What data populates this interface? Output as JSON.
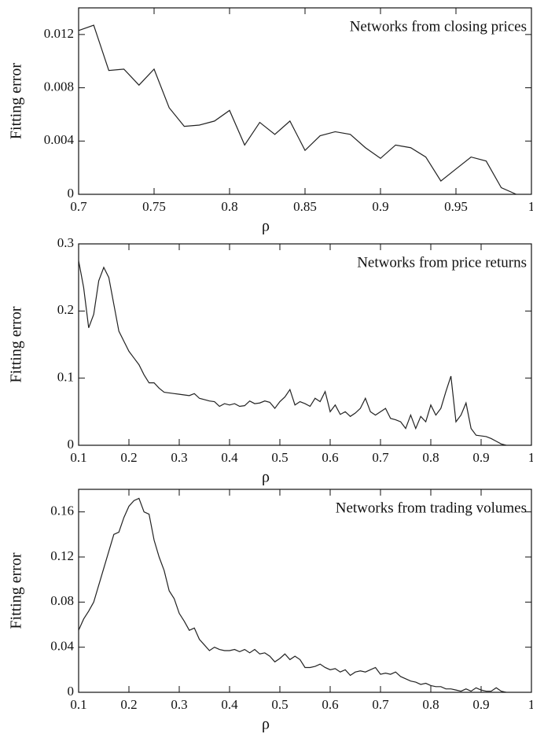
{
  "chart_data": [
    {
      "type": "line",
      "annotation": "Networks from closing prices",
      "xlabel": "ρ",
      "ylabel": "Fitting error",
      "color": "#222222",
      "x": [
        0.7,
        0.71,
        0.72,
        0.73,
        0.74,
        0.75,
        0.76,
        0.77,
        0.78,
        0.79,
        0.8,
        0.81,
        0.82,
        0.83,
        0.84,
        0.85,
        0.86,
        0.87,
        0.88,
        0.89,
        0.9,
        0.91,
        0.92,
        0.93,
        0.94,
        0.95,
        0.96,
        0.97,
        0.98,
        0.99
      ],
      "values": [
        0.0123,
        0.0127,
        0.0093,
        0.0094,
        0.0082,
        0.0094,
        0.0065,
        0.0051,
        0.0052,
        0.0055,
        0.0063,
        0.0037,
        0.0054,
        0.0045,
        0.0055,
        0.0033,
        0.0044,
        0.0047,
        0.0045,
        0.0035,
        0.0027,
        0.0037,
        0.0035,
        0.0028,
        0.001,
        0.0019,
        0.0028,
        0.0025,
        0.0005,
        0
      ],
      "xlim": [
        0.7,
        1
      ],
      "xticks": [
        0.7,
        0.75,
        0.8,
        0.85,
        0.9,
        0.95,
        1
      ],
      "ylim": [
        0,
        0.014
      ],
      "yticks": [
        0,
        0.004,
        0.008,
        0.012
      ]
    },
    {
      "type": "line",
      "annotation": "Networks from price returns",
      "xlabel": "ρ",
      "ylabel": "Fitting error",
      "color": "#222222",
      "x": [
        0.1,
        0.11,
        0.12,
        0.13,
        0.14,
        0.15,
        0.16,
        0.17,
        0.18,
        0.19,
        0.2,
        0.21,
        0.22,
        0.23,
        0.24,
        0.25,
        0.26,
        0.27,
        0.28,
        0.29,
        0.3,
        0.31,
        0.32,
        0.33,
        0.34,
        0.35,
        0.36,
        0.37,
        0.38,
        0.39,
        0.4,
        0.41,
        0.42,
        0.43,
        0.44,
        0.45,
        0.46,
        0.47,
        0.48,
        0.49,
        0.5,
        0.51,
        0.52,
        0.53,
        0.54,
        0.55,
        0.56,
        0.57,
        0.58,
        0.59,
        0.6,
        0.61,
        0.62,
        0.63,
        0.64,
        0.65,
        0.66,
        0.67,
        0.68,
        0.69,
        0.7,
        0.71,
        0.72,
        0.73,
        0.74,
        0.75,
        0.76,
        0.77,
        0.78,
        0.79,
        0.8,
        0.81,
        0.82,
        0.83,
        0.84,
        0.85,
        0.86,
        0.87,
        0.88,
        0.89,
        0.9,
        0.91,
        0.92,
        0.93,
        0.94,
        0.95
      ],
      "values": [
        0.275,
        0.235,
        0.175,
        0.195,
        0.245,
        0.265,
        0.25,
        0.21,
        0.17,
        0.155,
        0.14,
        0.13,
        0.12,
        0.105,
        0.093,
        0.093,
        0.085,
        0.079,
        0.078,
        0.077,
        0.076,
        0.075,
        0.074,
        0.077,
        0.07,
        0.068,
        0.066,
        0.065,
        0.058,
        0.062,
        0.06,
        0.062,
        0.058,
        0.059,
        0.066,
        0.062,
        0.063,
        0.066,
        0.064,
        0.055,
        0.065,
        0.072,
        0.083,
        0.06,
        0.065,
        0.062,
        0.058,
        0.07,
        0.065,
        0.08,
        0.05,
        0.06,
        0.046,
        0.05,
        0.043,
        0.048,
        0.055,
        0.07,
        0.05,
        0.045,
        0.05,
        0.055,
        0.04,
        0.038,
        0.035,
        0.025,
        0.045,
        0.025,
        0.043,
        0.035,
        0.06,
        0.045,
        0.055,
        0.08,
        0.103,
        0.035,
        0.045,
        0.063,
        0.025,
        0.015,
        0.014,
        0.013,
        0.01,
        0.006,
        0.002,
        0
      ],
      "xlim": [
        0.1,
        1
      ],
      "xticks": [
        0.1,
        0.2,
        0.3,
        0.4,
        0.5,
        0.6,
        0.7,
        0.8,
        0.9,
        1
      ],
      "ylim": [
        0,
        0.3
      ],
      "yticks": [
        0,
        0.1,
        0.2,
        0.3
      ]
    },
    {
      "type": "line",
      "annotation": "Networks from trading volumes",
      "xlabel": "ρ",
      "ylabel": "Fitting error",
      "color": "#222222",
      "x": [
        0.1,
        0.11,
        0.12,
        0.13,
        0.14,
        0.15,
        0.16,
        0.17,
        0.18,
        0.19,
        0.2,
        0.21,
        0.22,
        0.23,
        0.24,
        0.25,
        0.26,
        0.27,
        0.28,
        0.29,
        0.3,
        0.31,
        0.32,
        0.33,
        0.34,
        0.35,
        0.36,
        0.37,
        0.38,
        0.39,
        0.4,
        0.41,
        0.42,
        0.43,
        0.44,
        0.45,
        0.46,
        0.47,
        0.48,
        0.49,
        0.5,
        0.51,
        0.52,
        0.53,
        0.54,
        0.55,
        0.56,
        0.57,
        0.58,
        0.59,
        0.6,
        0.61,
        0.62,
        0.63,
        0.64,
        0.65,
        0.66,
        0.67,
        0.68,
        0.69,
        0.7,
        0.71,
        0.72,
        0.73,
        0.74,
        0.75,
        0.76,
        0.77,
        0.78,
        0.79,
        0.8,
        0.81,
        0.82,
        0.83,
        0.84,
        0.85,
        0.86,
        0.87,
        0.88,
        0.89,
        0.9,
        0.91,
        0.92,
        0.93,
        0.94,
        0.95
      ],
      "values": [
        0.055,
        0.065,
        0.072,
        0.08,
        0.095,
        0.11,
        0.125,
        0.14,
        0.142,
        0.155,
        0.165,
        0.17,
        0.172,
        0.16,
        0.158,
        0.135,
        0.12,
        0.108,
        0.09,
        0.083,
        0.07,
        0.063,
        0.055,
        0.057,
        0.047,
        0.042,
        0.037,
        0.04,
        0.038,
        0.037,
        0.037,
        0.038,
        0.036,
        0.038,
        0.035,
        0.038,
        0.034,
        0.035,
        0.032,
        0.027,
        0.03,
        0.034,
        0.029,
        0.032,
        0.029,
        0.022,
        0.022,
        0.023,
        0.025,
        0.022,
        0.02,
        0.021,
        0.018,
        0.02,
        0.015,
        0.018,
        0.019,
        0.018,
        0.02,
        0.022,
        0.016,
        0.017,
        0.016,
        0.018,
        0.014,
        0.012,
        0.01,
        0.009,
        0.007,
        0.008,
        0.006,
        0.005,
        0.005,
        0.003,
        0.003,
        0.002,
        0.001,
        0.003,
        0.001,
        0.004,
        0.002,
        0.001,
        0.001,
        0.004,
        0.001,
        0
      ],
      "xlim": [
        0.1,
        1
      ],
      "xticks": [
        0.1,
        0.2,
        0.3,
        0.4,
        0.5,
        0.6,
        0.7,
        0.8,
        0.9,
        1
      ],
      "ylim": [
        0,
        0.18
      ],
      "yticks": [
        0,
        0.04,
        0.08,
        0.12,
        0.16
      ]
    }
  ]
}
